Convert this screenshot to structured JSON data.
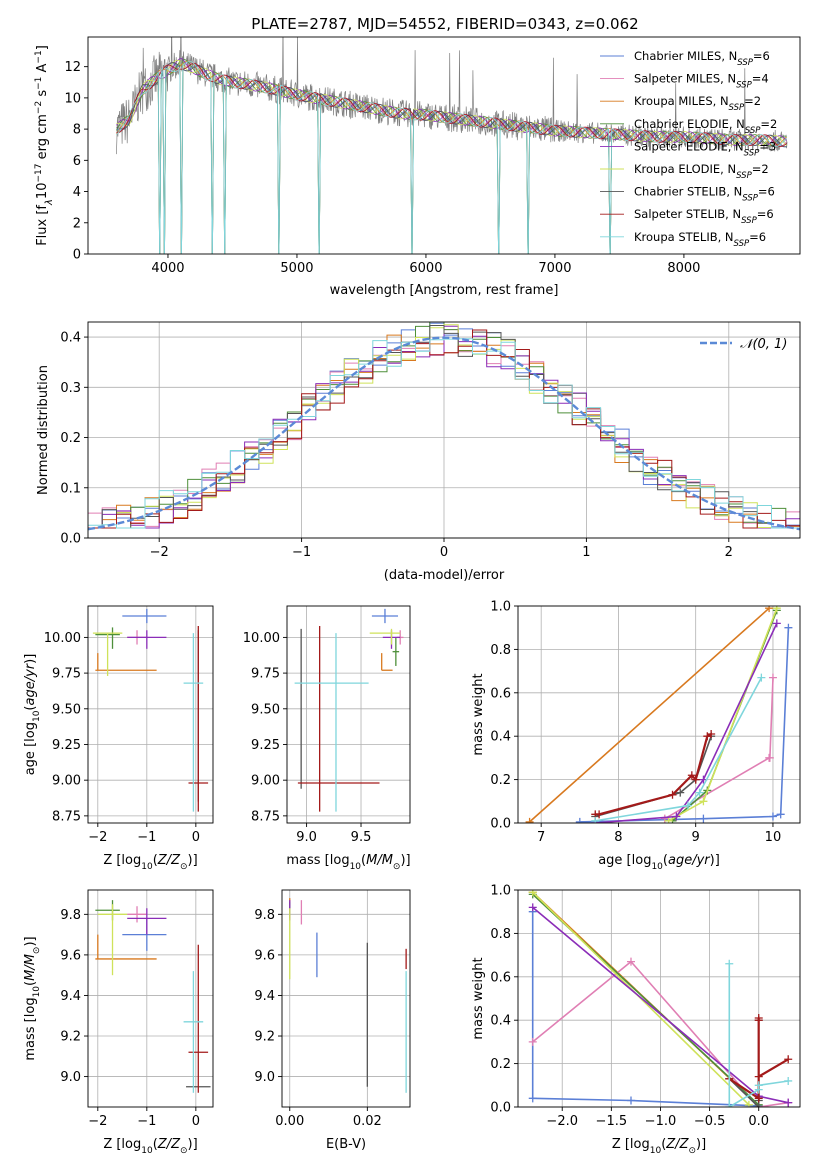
{
  "figure_title": "PLATE=2787, MJD=54552, FIBERID=0343, z=0.062",
  "colors": {
    "Chabrier MILES": "#5b7fd6",
    "Salpeter MILES": "#e07fb4",
    "Kroupa MILES": "#d8791f",
    "Chabrier ELODIE": "#4e8f3a",
    "Salpeter ELODIE": "#8b2db8",
    "Kroupa ELODIE": "#cfe25a",
    "Chabrier STELIB": "#555555",
    "Salpeter STELIB": "#a31a1a",
    "Kroupa STELIB": "#7fd6dc",
    "data": "#7f7f7f",
    "gaussian": "#5b8ad6"
  },
  "chart_data": [
    {
      "id": "spectrum",
      "type": "line",
      "xlabel": "wavelength [Angstrom, rest frame]",
      "ylabel_main": "Flux [f",
      "ylabel_sub": "λ",
      "ylabel_rest": "10",
      "ylabel_sup1": "−17",
      "ylabel_rest2": " erg cm",
      "ylabel_sup2": "−2",
      "ylabel_rest3": " s",
      "ylabel_sup3": "−1",
      "ylabel_rest4": " A",
      "ylabel_sup4": "−1",
      "ylabel_end": "]",
      "xlim": [
        3380,
        8900
      ],
      "ylim": [
        0,
        13.9
      ],
      "xticks": [
        "4000",
        "5000",
        "6000",
        "7000",
        "8000"
      ],
      "yticks": [
        "0",
        "2",
        "4",
        "6",
        "8",
        "10",
        "12"
      ],
      "continuum": {
        "x": [
          3600,
          3700,
          3800,
          3900,
          4000,
          4100,
          4200,
          4300,
          4400,
          4500,
          4600,
          4800,
          5000,
          5200,
          5400,
          5600,
          5800,
          6000,
          6200,
          6400,
          6600,
          6800,
          7000,
          7200,
          7400,
          7600,
          7800,
          8000,
          8200,
          8400,
          8600,
          8800
        ],
        "y": [
          8.0,
          8.6,
          10.5,
          11.2,
          11.8,
          12.2,
          11.9,
          11.5,
          11.2,
          11.0,
          10.9,
          10.6,
          10.2,
          9.9,
          9.6,
          9.3,
          9.0,
          8.9,
          8.7,
          8.5,
          8.3,
          8.1,
          7.9,
          7.8,
          7.7,
          7.6,
          7.5,
          7.5,
          7.4,
          7.3,
          7.3,
          7.2
        ]
      },
      "absorption_dips": [
        3933,
        3968,
        4102,
        4340,
        4443,
        4861,
        5175,
        5890,
        6563,
        6792,
        7430
      ],
      "legend": [
        {
          "label": "Chabrier MILES, N",
          "sub": "SSP",
          "n": "=6"
        },
        {
          "label": "Salpeter MILES, N",
          "sub": "SSP",
          "n": "=4"
        },
        {
          "label": "Kroupa MILES, N",
          "sub": "SSP",
          "n": "=2"
        },
        {
          "label": "Chabrier ELODIE, N",
          "sub": "SSP",
          "n": "=2"
        },
        {
          "label": "Salpeter ELODIE, N",
          "sub": "SSP",
          "n": "=3"
        },
        {
          "label": "Kroupa ELODIE, N",
          "sub": "SSP",
          "n": "=2"
        },
        {
          "label": "Chabrier STELIB, N",
          "sub": "SSP",
          "n": "=6"
        },
        {
          "label": "Salpeter STELIB, N",
          "sub": "SSP",
          "n": "=6"
        },
        {
          "label": "Kroupa STELIB, N",
          "sub": "SSP",
          "n": "=6"
        }
      ]
    },
    {
      "id": "residuals",
      "type": "histogram",
      "xlabel": "(data-model)/error",
      "ylabel": "Normed distribution",
      "xlim": [
        -2.5,
        2.5
      ],
      "ylim": [
        0,
        0.43
      ],
      "xticks": [
        "−2",
        "−1",
        "0",
        "1",
        "2"
      ],
      "yticks": [
        "0.0",
        "0.1",
        "0.2",
        "0.3",
        "0.4"
      ],
      "legend_label": "𝒩(0, 1)",
      "bin_width": 0.1
    },
    {
      "id": "age_vs_Z",
      "type": "errorbar",
      "xlabel": "Z [log10(Z/Z⊙)]",
      "ylabel": "age  [log10(age/yr)]",
      "xlim": [
        -2.2,
        0.35
      ],
      "ylim": [
        8.7,
        10.22
      ],
      "xticks": [
        "−2",
        "−1",
        "0"
      ],
      "yticks": [
        "8.75",
        "9.00",
        "9.25",
        "9.50",
        "9.75",
        "10.00"
      ],
      "points": [
        {
          "model": "Chabrier MILES",
          "x": -1.0,
          "xerr": [
            0.5,
            0.4
          ],
          "y": 10.15,
          "yerr": [
            0.05,
            0.05
          ]
        },
        {
          "model": "Salpeter MILES",
          "x": -1.2,
          "xerr": [
            0.2,
            0.2
          ],
          "y": 10.0,
          "yerr": [
            0.05,
            0.05
          ]
        },
        {
          "model": "Kroupa MILES",
          "x": -2.0,
          "xerr": [
            0.05,
            1.2
          ],
          "y": 9.77,
          "yerr": [
            0.0,
            0.12
          ]
        },
        {
          "model": "Chabrier ELODIE",
          "x": -1.7,
          "xerr": [
            0.35,
            0.15
          ],
          "y": 10.02,
          "yerr": [
            0.1,
            0.05
          ]
        },
        {
          "model": "Salpeter ELODIE",
          "x": -1.0,
          "xerr": [
            0.4,
            0.4
          ],
          "y": 10.0,
          "yerr": [
            0.08,
            0.05
          ]
        },
        {
          "model": "Kroupa ELODIE",
          "x": -1.8,
          "xerr": [
            0.3,
            0.3
          ],
          "y": 10.03,
          "yerr": [
            0.3,
            0.0
          ]
        },
        {
          "model": "Chabrier STELIB",
          "x": 0.05,
          "xerr": [
            0.0,
            0.0
          ],
          "y": 9.45,
          "yerr": [
            0.6,
            0.6
          ]
        },
        {
          "model": "Salpeter STELIB",
          "x": 0.05,
          "xerr": [
            0.2,
            0.2
          ],
          "y": 8.98,
          "yerr": [
            0.2,
            1.1
          ]
        },
        {
          "model": "Kroupa STELIB",
          "x": -0.05,
          "xerr": [
            0.2,
            0.2
          ],
          "y": 9.68,
          "yerr": [
            0.9,
            0.35
          ]
        }
      ]
    },
    {
      "id": "age_vs_mass",
      "type": "errorbar",
      "xlabel": "mass [log10(M/M⊙)]",
      "xlim": [
        8.82,
        9.95
      ],
      "ylim": [
        8.7,
        10.22
      ],
      "xticks": [
        "9.0",
        "9.5"
      ],
      "yticks": [
        "8.75",
        "9.00",
        "9.25",
        "9.50",
        "9.75",
        "10.00"
      ],
      "points": [
        {
          "model": "Chabrier MILES",
          "x": 9.72,
          "xerr": [
            0.12,
            0.12
          ],
          "y": 10.15,
          "yerr": [
            0.05,
            0.05
          ]
        },
        {
          "model": "Salpeter MILES",
          "x": 9.86,
          "xerr": [
            0.03,
            0.03
          ],
          "y": 10.0,
          "yerr": [
            0.05,
            0.05
          ]
        },
        {
          "model": "Kroupa MILES",
          "x": 9.69,
          "xerr": [
            0.0,
            0.1
          ],
          "y": 9.77,
          "yerr": [
            0.0,
            0.12
          ]
        },
        {
          "model": "Chabrier ELODIE",
          "x": 9.82,
          "xerr": [
            0.03,
            0.03
          ],
          "y": 9.9,
          "yerr": [
            0.1,
            0.1
          ]
        },
        {
          "model": "Salpeter ELODIE",
          "x": 9.78,
          "xerr": [
            0.08,
            0.08
          ],
          "y": 10.0,
          "yerr": [
            0.08,
            0.05
          ]
        },
        {
          "model": "Kroupa ELODIE",
          "x": 9.78,
          "xerr": [
            0.2,
            0.08
          ],
          "y": 10.03,
          "yerr": [
            0.08,
            0.03
          ]
        },
        {
          "model": "Chabrier STELIB",
          "x": 8.95,
          "xerr": [
            0.0,
            0.0
          ],
          "y": 9.5,
          "yerr": [
            0.56,
            0.56
          ]
        },
        {
          "model": "Salpeter STELIB",
          "x": 9.12,
          "xerr": [
            0.2,
            0.55
          ],
          "y": 8.98,
          "yerr": [
            0.2,
            1.1
          ]
        },
        {
          "model": "Kroupa STELIB",
          "x": 9.27,
          "xerr": [
            0.38,
            0.3
          ],
          "y": 9.68,
          "yerr": [
            0.9,
            0.35
          ]
        }
      ]
    },
    {
      "id": "weight_vs_age",
      "type": "line",
      "xlabel": "age  [log10(age/yr)]",
      "ylabel": "mass weight",
      "xlim": [
        6.7,
        10.35
      ],
      "ylim": [
        0,
        1.0
      ],
      "xticks": [
        "7",
        "8",
        "9",
        "10"
      ],
      "yticks": [
        "0.0",
        "0.2",
        "0.4",
        "0.6",
        "0.8",
        "1.0"
      ],
      "series": [
        {
          "model": "Kroupa MILES",
          "x": [
            6.85,
            9.95
          ],
          "y": [
            0.005,
            0.99
          ]
        },
        {
          "model": "Chabrier MILES",
          "x": [
            7.5,
            9.1,
            10.0,
            10.1,
            10.2
          ],
          "y": [
            0.005,
            0.02,
            0.03,
            0.04,
            0.9
          ]
        },
        {
          "model": "Salpeter MILES",
          "x": [
            8.6,
            9.95,
            9.96,
            10.0
          ],
          "y": [
            0.02,
            0.3,
            0.3,
            0.67
          ]
        },
        {
          "model": "Chabrier ELODIE",
          "x": [
            8.7,
            9.15,
            10.05
          ],
          "y": [
            0.01,
            0.15,
            0.98
          ]
        },
        {
          "model": "Kroupa ELODIE",
          "x": [
            8.65,
            9.1,
            10.05
          ],
          "y": [
            0.01,
            0.1,
            0.99
          ]
        },
        {
          "model": "Salpeter ELODIE",
          "x": [
            7.7,
            8.75,
            9.1,
            10.05
          ],
          "y": [
            0.0,
            0.03,
            0.2,
            0.92
          ]
        },
        {
          "model": "Chabrier STELIB",
          "x": [
            7.7,
            8.8,
            9.0,
            9.2
          ],
          "y": [
            0.03,
            0.14,
            0.2,
            0.4
          ]
        },
        {
          "model": "Salpeter STELIB",
          "x": [
            7.7,
            7.75,
            8.7,
            8.95,
            9.0,
            9.15,
            9.2
          ],
          "y": [
            0.04,
            0.04,
            0.13,
            0.22,
            0.2,
            0.4,
            0.41
          ]
        },
        {
          "model": "Kroupa STELIB",
          "x": [
            7.7,
            8.9,
            9.05,
            9.85
          ],
          "y": [
            0.01,
            0.08,
            0.14,
            0.67
          ]
        }
      ]
    },
    {
      "id": "mass_vs_Z",
      "type": "errorbar",
      "xlabel": "Z [log10(Z/Z⊙)]",
      "ylabel": "mass [log10(M/M⊙)]",
      "xlim": [
        -2.2,
        0.35
      ],
      "ylim": [
        8.85,
        9.92
      ],
      "xticks": [
        "−2",
        "−1",
        "0"
      ],
      "yticks": [
        "9.0",
        "9.2",
        "9.4",
        "9.6",
        "9.8"
      ],
      "points": [
        {
          "model": "Chabrier MILES",
          "x": -1.0,
          "xerr": [
            0.5,
            0.4
          ],
          "y": 9.7,
          "yerr": [
            0.08,
            0.08
          ]
        },
        {
          "model": "Salpeter MILES",
          "x": -1.2,
          "xerr": [
            0.2,
            0.2
          ],
          "y": 9.8,
          "yerr": [
            0.04,
            0.04
          ]
        },
        {
          "model": "Kroupa MILES",
          "x": -2.0,
          "xerr": [
            0.05,
            1.2
          ],
          "y": 9.58,
          "yerr": [
            0.0,
            0.12
          ]
        },
        {
          "model": "Chabrier ELODIE",
          "x": -1.7,
          "xerr": [
            0.35,
            0.15
          ],
          "y": 9.82,
          "yerr": [
            0.05,
            0.05
          ]
        },
        {
          "model": "Salpeter ELODIE",
          "x": -1.0,
          "xerr": [
            0.4,
            0.4
          ],
          "y": 9.78,
          "yerr": [
            0.08,
            0.05
          ]
        },
        {
          "model": "Kroupa ELODIE",
          "x": -1.7,
          "xerr": [
            0.3,
            0.3
          ],
          "y": 9.8,
          "yerr": [
            0.3,
            0.05
          ]
        },
        {
          "model": "Chabrier STELIB",
          "x": 0.05,
          "xerr": [
            0.25,
            0.25
          ],
          "y": 8.95,
          "yerr": [
            0.0,
            0.0
          ]
        },
        {
          "model": "Salpeter STELIB",
          "x": 0.05,
          "xerr": [
            0.2,
            0.2
          ],
          "y": 9.12,
          "yerr": [
            0.2,
            0.53
          ]
        },
        {
          "model": "Kroupa STELIB",
          "x": -0.05,
          "xerr": [
            0.2,
            0.2
          ],
          "y": 9.27,
          "yerr": [
            0.35,
            0.25
          ]
        }
      ]
    },
    {
      "id": "mass_vs_EBV",
      "type": "errorbar",
      "xlabel": "E(B-V)",
      "xlim": [
        -0.002,
        0.031
      ],
      "ylim": [
        8.85,
        9.92
      ],
      "xticks": [
        "0.00",
        "0.02"
      ],
      "yticks": [
        "9.0",
        "9.2",
        "9.4",
        "9.6",
        "9.8"
      ],
      "points": [
        {
          "model": "Chabrier MILES",
          "x": 0.007,
          "xerr": [
            0,
            0
          ],
          "y": 9.63,
          "yerr": [
            0.14,
            0.08
          ]
        },
        {
          "model": "Salpeter MILES",
          "x": 0.003,
          "xerr": [
            0,
            0
          ],
          "y": 9.81,
          "yerr": [
            0.06,
            0.06
          ]
        },
        {
          "model": "Kroupa MILES",
          "x": 0.0,
          "xerr": [
            0,
            0
          ],
          "y": 9.83,
          "yerr": [
            0.05,
            0.05
          ]
        },
        {
          "model": "Chabrier ELODIE",
          "x": 0.0,
          "xerr": [
            0,
            0
          ],
          "y": 9.82,
          "yerr": [
            0.04,
            0.04
          ]
        },
        {
          "model": "Salpeter ELODIE",
          "x": 0.0,
          "xerr": [
            0,
            0
          ],
          "y": 9.82,
          "yerr": [
            0.05,
            0.05
          ]
        },
        {
          "model": "Kroupa ELODIE",
          "x": 0.0,
          "xerr": [
            0,
            0
          ],
          "y": 9.63,
          "yerr": [
            0.15,
            0.2
          ]
        },
        {
          "model": "Chabrier STELIB",
          "x": 0.02,
          "xerr": [
            0,
            0
          ],
          "y": 9.3,
          "yerr": [
            0.35,
            0.36
          ]
        },
        {
          "model": "Salpeter STELIB",
          "x": 0.03,
          "xerr": [
            0,
            0
          ],
          "y": 9.58,
          "yerr": [
            0.05,
            0.05
          ]
        },
        {
          "model": "Kroupa STELIB",
          "x": 0.03,
          "xerr": [
            0,
            0
          ],
          "y": 9.22,
          "yerr": [
            0.3,
            0.3
          ]
        }
      ]
    },
    {
      "id": "weight_vs_Z",
      "type": "line",
      "xlabel": "Z [log10(Z/Z⊙)]",
      "ylabel": "mass weight",
      "xlim": [
        -2.45,
        0.42
      ],
      "ylim": [
        0,
        1.0
      ],
      "xticks": [
        "−2.0",
        "−1.5",
        "−1.0",
        "−0.5",
        "0.0"
      ],
      "yticks": [
        "0.0",
        "0.2",
        "0.4",
        "0.6",
        "0.8",
        "1.0"
      ],
      "series": [
        {
          "model": "Kroupa MILES",
          "x": [
            -2.3,
            0.0
          ],
          "y": [
            0.99,
            0.005
          ]
        },
        {
          "model": "Chabrier MILES",
          "x": [
            -2.3,
            -2.3,
            -1.3,
            0.0,
            0.0
          ],
          "y": [
            0.9,
            0.04,
            0.03,
            0.005,
            0.0
          ]
        },
        {
          "model": "Salpeter MILES",
          "x": [
            -2.3,
            -1.3,
            0.0,
            0.3,
            0.3
          ],
          "y": [
            0.3,
            0.67,
            0.0,
            0.02,
            0.02
          ]
        },
        {
          "model": "Chabrier ELODIE",
          "x": [
            -2.3,
            0.0
          ],
          "y": [
            0.98,
            0.01
          ]
        },
        {
          "model": "Kroupa ELODIE",
          "x": [
            -2.3,
            -0.1
          ],
          "y": [
            0.99,
            0.01
          ]
        },
        {
          "model": "Salpeter ELODIE",
          "x": [
            -2.3,
            0.0,
            0.3
          ],
          "y": [
            0.92,
            0.05,
            0.02
          ]
        },
        {
          "model": "Chabrier STELIB",
          "x": [
            -0.3,
            0.0,
            0.0,
            0.0
          ],
          "y": [
            0.13,
            0.0,
            0.4,
            0.03
          ]
        },
        {
          "model": "Salpeter STELIB",
          "x": [
            -0.3,
            0.0,
            0.0,
            0.0,
            0.0,
            0.3
          ],
          "y": [
            0.13,
            0.04,
            0.4,
            0.41,
            0.14,
            0.22
          ]
        },
        {
          "model": "Kroupa STELIB",
          "x": [
            -0.3,
            -0.3,
            0.0,
            0.0,
            0.3
          ],
          "y": [
            0.66,
            0.0,
            0.08,
            0.1,
            0.12
          ]
        }
      ]
    }
  ]
}
